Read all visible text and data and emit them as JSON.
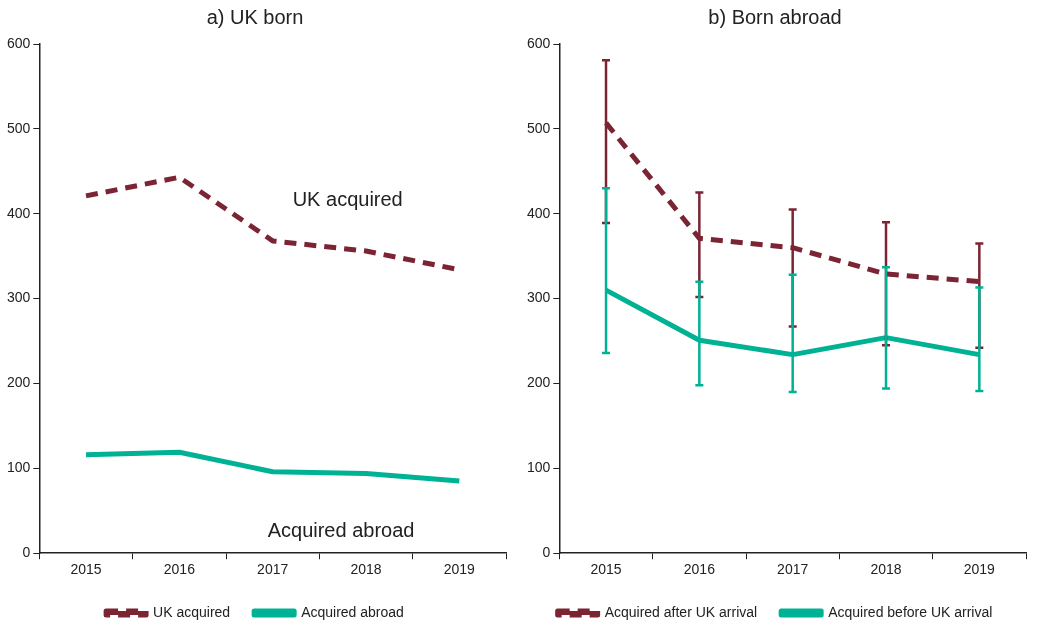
{
  "chart_data": [
    {
      "type": "line",
      "title": "a) UK born",
      "categories": [
        "2015",
        "2016",
        "2017",
        "2018",
        "2019"
      ],
      "series": [
        {
          "name": "UK acquired",
          "color": "#7b2433",
          "values": [
            421,
            443,
            368,
            356,
            334
          ],
          "line_style": "dashed"
        },
        {
          "name": "Acquired abroad",
          "color": "#00b294",
          "values": [
            116,
            119,
            96,
            94,
            85
          ],
          "line_style": "solid"
        }
      ],
      "ylim": [
        0,
        600
      ],
      "yticks": [
        0,
        100,
        200,
        300,
        400,
        500,
        600
      ],
      "grid": false,
      "legend": "bottom",
      "marker": "none",
      "annotations": [
        "UK acquired",
        "Acquired abroad"
      ]
    },
    {
      "type": "line",
      "title": "b) Born abroad",
      "categories": [
        "2015",
        "2016",
        "2017",
        "2018",
        "2019"
      ],
      "series": [
        {
          "name": "Acquired after UK arrival",
          "color": "#7b2433",
          "values": [
            507,
            371,
            360,
            329,
            320
          ],
          "line_style": "dashed",
          "errors": [
            [
              389,
              581
            ],
            [
              302,
              425
            ],
            [
              267,
              405
            ],
            [
              245,
              390
            ],
            [
              242,
              365
            ]
          ]
        },
        {
          "name": "Acquired before UK arrival",
          "color": "#00b294",
          "values": [
            310,
            251,
            234,
            254,
            234
          ],
          "line_style": "solid",
          "errors": [
            [
              236,
              430
            ],
            [
              198,
              320
            ],
            [
              190,
              328
            ],
            [
              194,
              337
            ],
            [
              191,
              313
            ]
          ]
        }
      ],
      "ylim": [
        0,
        600
      ],
      "yticks": [
        0,
        100,
        200,
        300,
        400,
        500,
        600
      ],
      "grid": false,
      "legend": "bottom",
      "marker": "none"
    }
  ]
}
